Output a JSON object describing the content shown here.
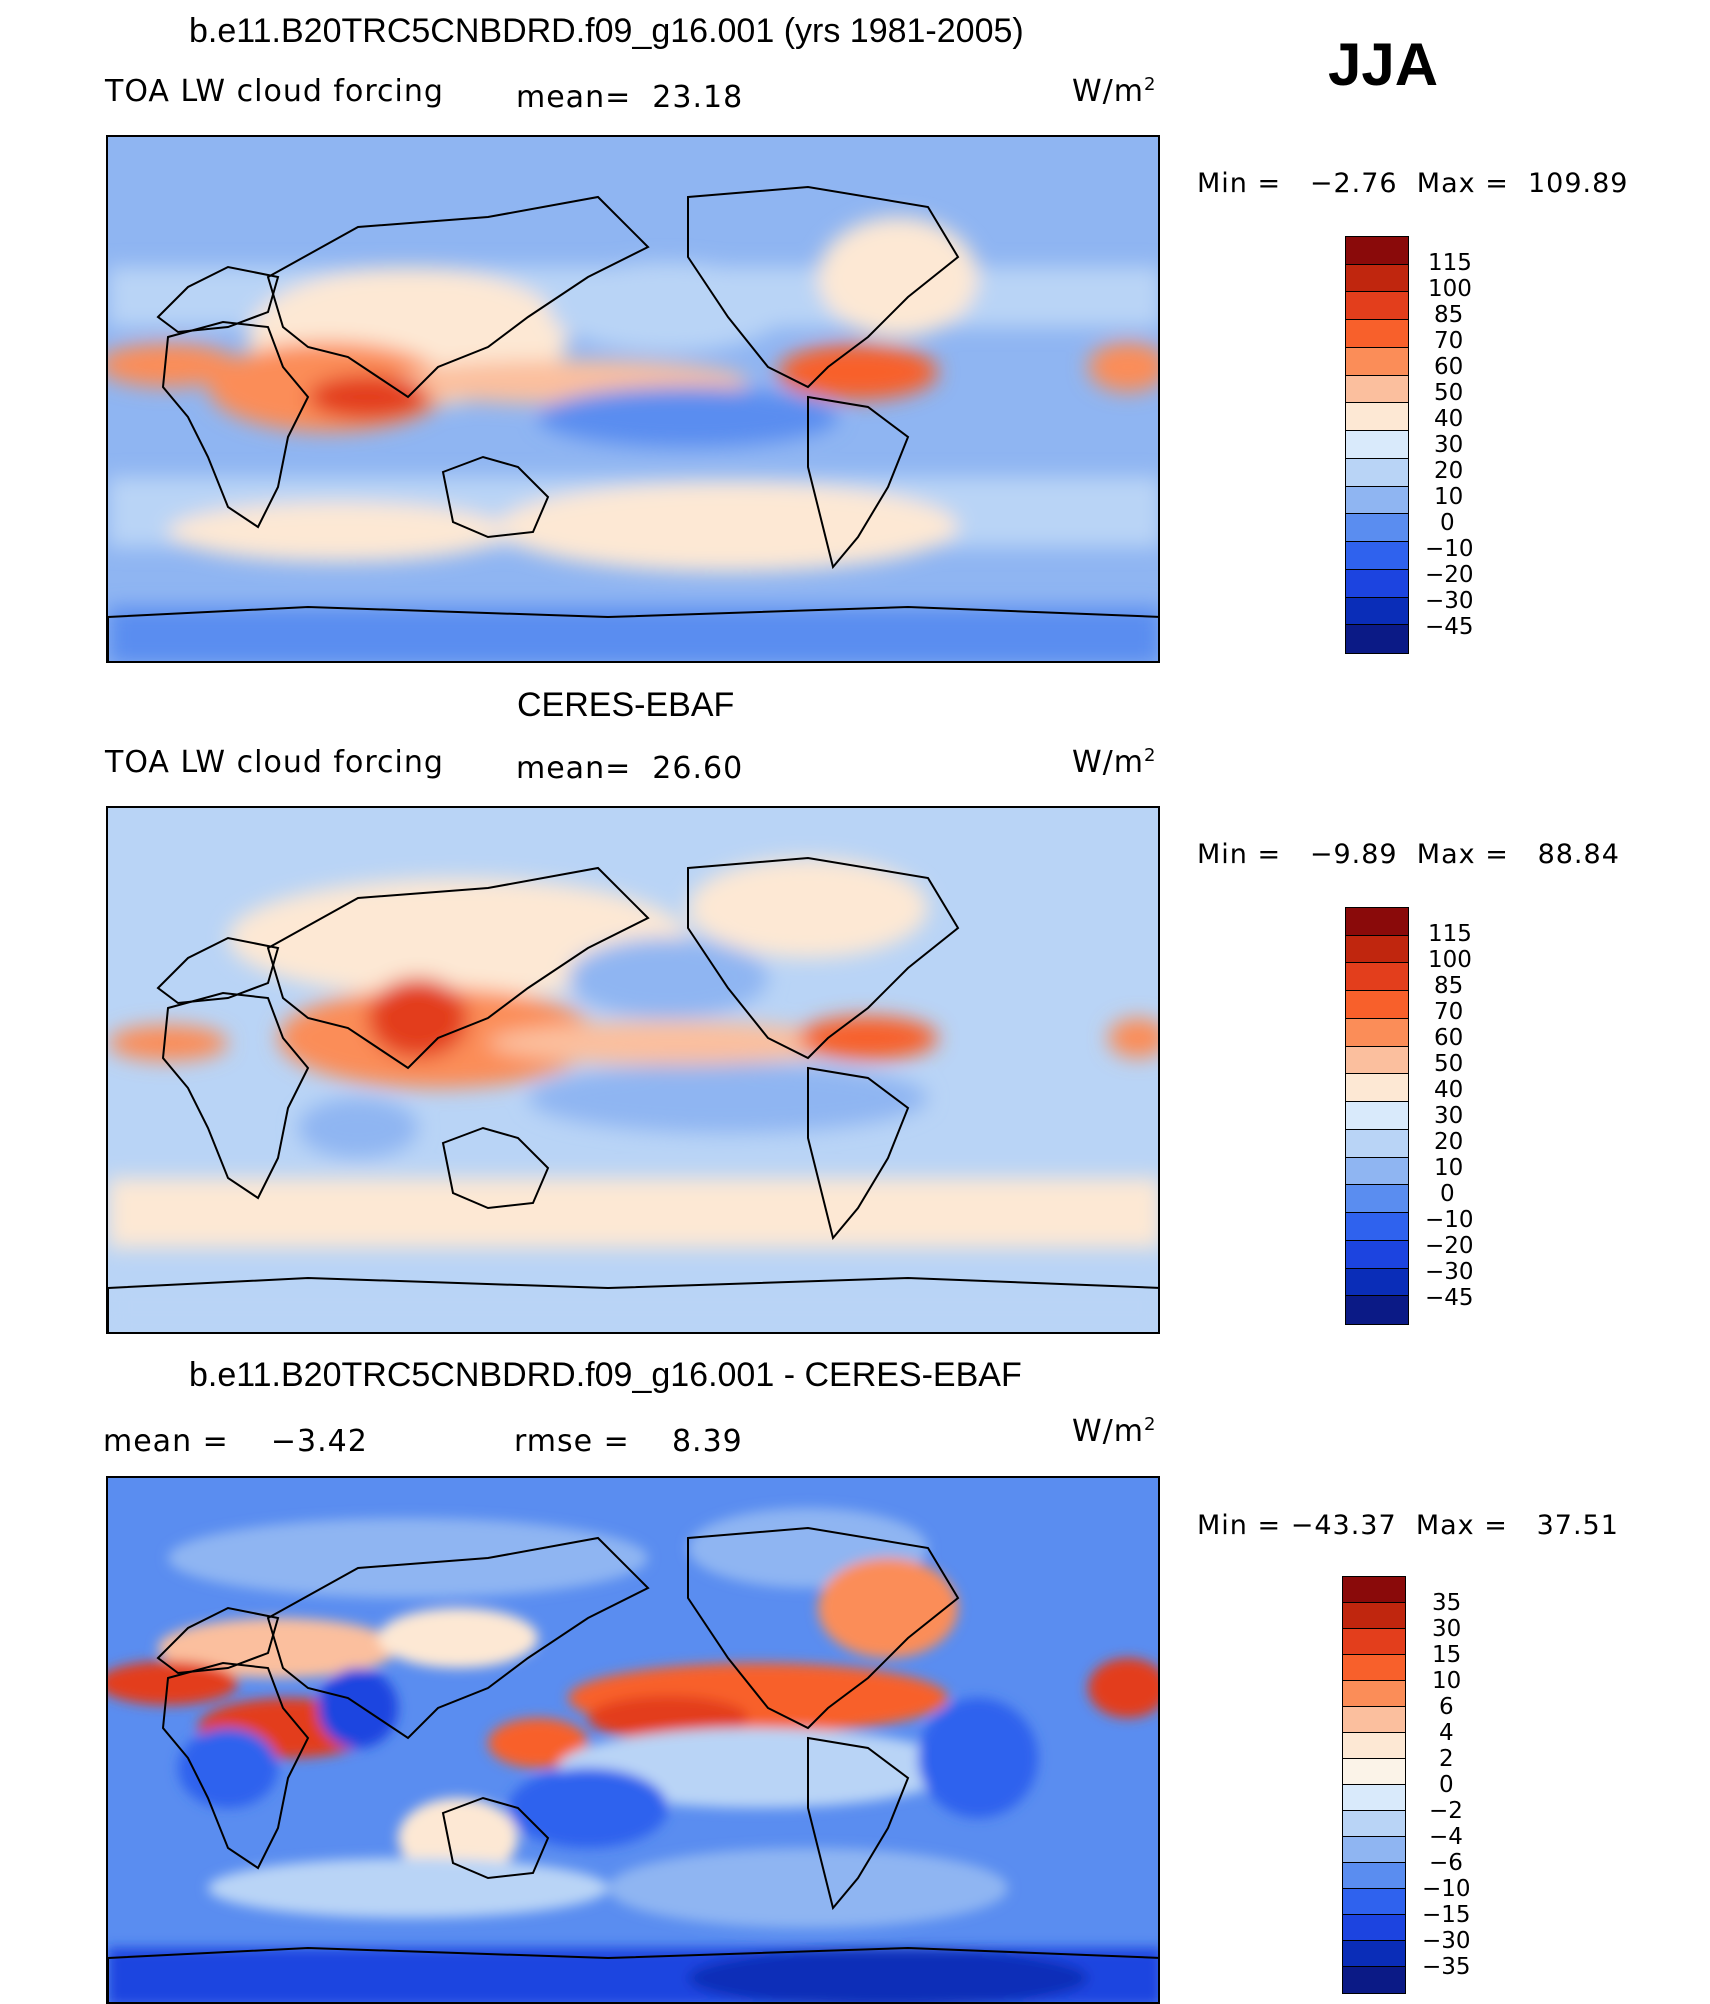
{
  "figure": {
    "season": "JJA",
    "units_left": "W/m",
    "units_sup": "2"
  },
  "panels": [
    {
      "title": "b.e11.B20TRC5CNBDRD.f09_g16.001 (yrs 1981-2005)",
      "left_label": "TOA LW cloud forcing",
      "center_label": "mean=",
      "center_value": "23.18",
      "min_label": "Min  =",
      "min_value": "−2.76",
      "max_label": "Max  =",
      "max_value": "109.89",
      "colorbar": {
        "colors": [
          "#8a0a0a",
          "#c0260e",
          "#e33e1c",
          "#f8602b",
          "#fb8d58",
          "#fbbf9e",
          "#fde8d4",
          "#d9eafb",
          "#b9d4f6",
          "#8fb5f2",
          "#5a8df0",
          "#2f62ee",
          "#1c44e0",
          "#0a2db8",
          "#0b1a86"
        ],
        "labels": [
          "115",
          "100",
          "85",
          "70",
          "60",
          "50",
          "40",
          "30",
          "20",
          "10",
          "0",
          "−10",
          "−20",
          "−30",
          "−45"
        ]
      }
    },
    {
      "title": "CERES-EBAF",
      "left_label": "TOA LW cloud forcing",
      "center_label": "mean=",
      "center_value": "26.60",
      "min_label": "Min  =",
      "min_value": "−9.89",
      "max_label": "Max  =",
      "max_value": "88.84",
      "colorbar": {
        "colors": [
          "#8a0a0a",
          "#c0260e",
          "#e33e1c",
          "#f8602b",
          "#fb8d58",
          "#fbbf9e",
          "#fde8d4",
          "#d9eafb",
          "#b9d4f6",
          "#8fb5f2",
          "#5a8df0",
          "#2f62ee",
          "#1c44e0",
          "#0a2db8",
          "#0b1a86"
        ],
        "labels": [
          "115",
          "100",
          "85",
          "70",
          "60",
          "50",
          "40",
          "30",
          "20",
          "10",
          "0",
          "−10",
          "−20",
          "−30",
          "−45"
        ]
      }
    },
    {
      "title": "b.e11.B20TRC5CNBDRD.f09_g16.001 - CERES-EBAF",
      "left_label": "mean  =",
      "left_value": "−3.42",
      "center_label": "rmse  =",
      "center_value": "8.39",
      "min_label": "Min  =",
      "min_value": "−43.37",
      "max_label": "Max  =",
      "max_value": "37.51",
      "colorbar": {
        "colors": [
          "#8a0a0a",
          "#c0260e",
          "#e33e1c",
          "#f8602b",
          "#fb8d58",
          "#fbbf9e",
          "#fde8d4",
          "#fbf3e8",
          "#d9eafb",
          "#b9d4f6",
          "#8fb5f2",
          "#5a8df0",
          "#2f62ee",
          "#1c44e0",
          "#0a2db8",
          "#0b1a86"
        ],
        "labels": [
          "35",
          "30",
          "15",
          "10",
          "6",
          "4",
          "2",
          "0",
          "−2",
          "−4",
          "−6",
          "−10",
          "−15",
          "−30",
          "−35"
        ]
      }
    }
  ]
}
